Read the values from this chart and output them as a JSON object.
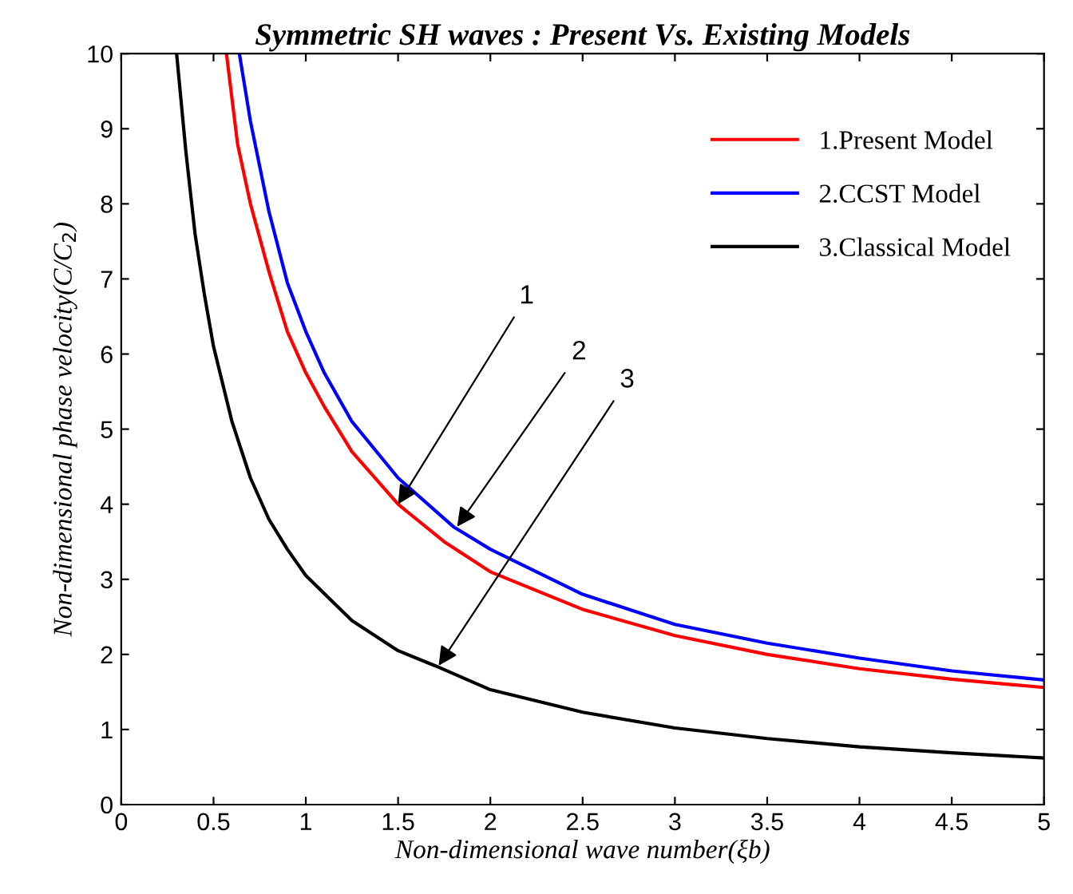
{
  "chart_data": {
    "type": "line",
    "title": "Symmetric SH waves : Present Vs. Existing Models",
    "xlabel": "Non-dimensional wave number(ξb)",
    "ylabel": "Non-dimensional phase velocity(C/C$_{2}$)",
    "xlim": [
      0,
      5
    ],
    "ylim": [
      0,
      10
    ],
    "xticks": [
      0,
      0.5,
      1,
      1.5,
      2,
      2.5,
      3,
      3.5,
      4,
      4.5,
      5
    ],
    "yticks": [
      0,
      1,
      2,
      3,
      4,
      5,
      6,
      7,
      8,
      9,
      10
    ],
    "grid": false,
    "legend": "top right",
    "marker": "none",
    "line_style": "solid",
    "series": [
      {
        "name": "1.Present Model",
        "color": "#ff0000",
        "x": [
          0.57,
          0.63,
          0.7,
          0.8,
          0.9,
          1.0,
          1.1,
          1.25,
          1.5,
          1.75,
          2,
          2.5,
          3,
          3.5,
          4,
          4.5,
          5
        ],
        "values": [
          10,
          8.8,
          8.0,
          7.1,
          6.3,
          5.75,
          5.3,
          4.7,
          4.0,
          3.5,
          3.1,
          2.6,
          2.25,
          2.0,
          1.81,
          1.67,
          1.56
        ]
      },
      {
        "name": "2.CCST Model",
        "color": "#0000ff",
        "x": [
          0.64,
          0.7,
          0.8,
          0.9,
          1.0,
          1.1,
          1.25,
          1.5,
          1.8,
          2,
          2.5,
          3,
          3.5,
          4,
          4.5,
          5
        ],
        "values": [
          10,
          9.1,
          7.9,
          6.95,
          6.3,
          5.75,
          5.1,
          4.35,
          3.7,
          3.4,
          2.8,
          2.4,
          2.15,
          1.95,
          1.78,
          1.66
        ]
      },
      {
        "name": "3.Classical Model",
        "color": "#000000",
        "x": [
          0.3,
          0.35,
          0.4,
          0.45,
          0.5,
          0.6,
          0.7,
          0.8,
          0.9,
          1,
          1.25,
          1.5,
          1.7,
          2,
          2.5,
          3,
          3.5,
          4,
          4.5,
          5
        ],
        "values": [
          10,
          8.7,
          7.6,
          6.8,
          6.1,
          5.1,
          4.35,
          3.8,
          3.4,
          3.05,
          2.45,
          2.05,
          1.85,
          1.53,
          1.23,
          1.02,
          0.88,
          0.77,
          0.69,
          0.62
        ]
      }
    ],
    "annotations": [
      {
        "text": "1",
        "x": 1.5,
        "y": 4.0
      },
      {
        "text": "2",
        "x": 1.82,
        "y": 3.7
      },
      {
        "text": "3",
        "x": 1.72,
        "y": 1.85
      }
    ]
  }
}
